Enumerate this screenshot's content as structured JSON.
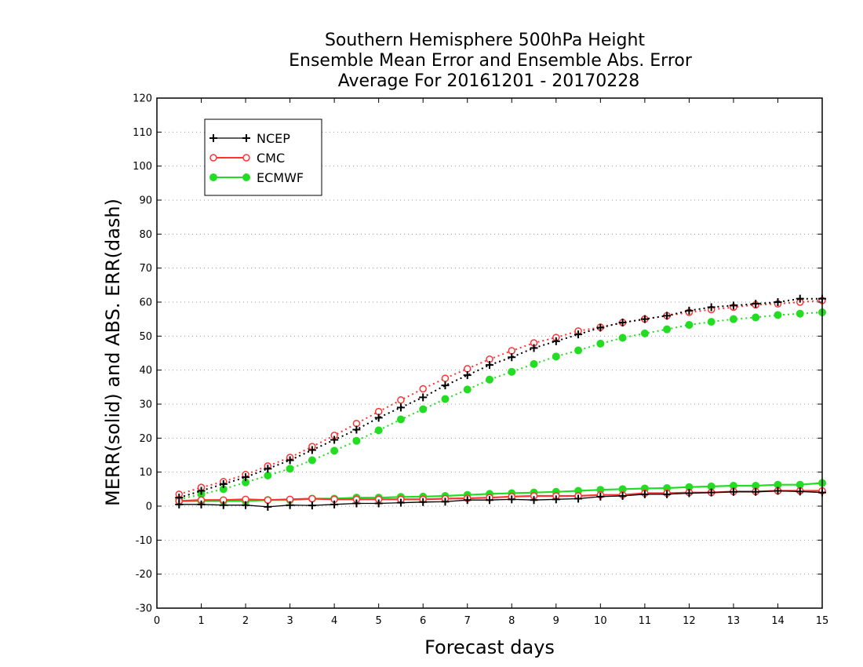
{
  "chart_data": {
    "type": "line",
    "title": [
      "Southern Hemisphere 500hPa Height",
      "Ensemble Mean Error and Ensemble Abs. Error",
      "Average For 20161201 - 20170228"
    ],
    "xlabel": "Forecast days",
    "ylabel": "MERR(solid) and ABS. ERR(dash)",
    "xlim": [
      0,
      15
    ],
    "ylim": [
      -30,
      120
    ],
    "xticks": [
      0,
      1,
      2,
      3,
      4,
      5,
      6,
      7,
      8,
      9,
      10,
      11,
      12,
      13,
      14,
      15
    ],
    "yticks": [
      -30,
      -20,
      -10,
      0,
      10,
      20,
      30,
      40,
      50,
      60,
      70,
      80,
      90,
      100,
      110,
      120
    ],
    "grid": "horizontal dotted",
    "legend_position": "top-left",
    "x": [
      0.5,
      1.0,
      1.5,
      2.0,
      2.5,
      3.0,
      3.5,
      4.0,
      4.5,
      5.0,
      5.5,
      6.0,
      6.5,
      7.0,
      7.5,
      8.0,
      8.5,
      9.0,
      9.5,
      10.0,
      10.5,
      11.0,
      11.5,
      12.0,
      12.5,
      13.0,
      13.5,
      14.0,
      14.5,
      15.0
    ],
    "series": [
      {
        "name": "NCEP",
        "color": "#000000",
        "marker": "plus",
        "merr": [
          0.5,
          0.5,
          0.3,
          0.3,
          -0.2,
          0.3,
          0.2,
          0.5,
          0.8,
          0.8,
          1.0,
          1.2,
          1.3,
          1.8,
          1.8,
          2.0,
          1.8,
          2.0,
          2.2,
          2.8,
          3.0,
          3.5,
          3.5,
          3.8,
          4.0,
          4.2,
          4.2,
          4.5,
          4.3,
          4.0
        ],
        "abs_err": [
          2.5,
          4.5,
          6.5,
          8.5,
          11.0,
          13.5,
          16.5,
          19.5,
          22.5,
          26.0,
          29.0,
          32.0,
          35.5,
          38.5,
          41.5,
          43.8,
          46.5,
          48.5,
          50.5,
          52.5,
          54.0,
          55.0,
          56.0,
          57.5,
          58.5,
          59.0,
          59.5,
          60.0,
          61.0,
          61.0
        ]
      },
      {
        "name": "CMC",
        "color": "#ff3333",
        "marker": "open-circle",
        "merr": [
          1.5,
          1.8,
          1.8,
          2.0,
          1.8,
          2.0,
          2.2,
          2.0,
          2.0,
          2.0,
          2.0,
          2.0,
          2.2,
          2.3,
          2.5,
          2.8,
          3.0,
          3.0,
          3.0,
          3.3,
          3.3,
          3.8,
          3.8,
          4.0,
          4.0,
          4.3,
          4.3,
          4.5,
          4.5,
          4.5
        ],
        "abs_err": [
          3.5,
          5.5,
          7.2,
          9.3,
          11.8,
          14.3,
          17.5,
          20.8,
          24.3,
          27.8,
          31.2,
          34.5,
          37.6,
          40.4,
          43.2,
          45.7,
          48.0,
          49.6,
          51.5,
          52.6,
          54.0,
          55.0,
          56.0,
          57.0,
          57.8,
          58.5,
          59.2,
          59.5,
          60.0,
          60.5
        ]
      },
      {
        "name": "ECMWF",
        "color": "#22dd22",
        "marker": "filled-circle",
        "merr": [
          1.5,
          1.5,
          1.5,
          1.5,
          1.8,
          1.8,
          2.2,
          2.2,
          2.5,
          2.5,
          2.7,
          2.8,
          3.0,
          3.3,
          3.6,
          3.8,
          4.0,
          4.2,
          4.5,
          4.8,
          5.0,
          5.2,
          5.3,
          5.6,
          5.8,
          6.0,
          6.0,
          6.3,
          6.3,
          6.8
        ],
        "abs_err": [
          2.0,
          3.5,
          5.0,
          7.0,
          9.0,
          11.0,
          13.5,
          16.3,
          19.2,
          22.3,
          25.5,
          28.5,
          31.5,
          34.3,
          37.2,
          39.5,
          41.8,
          44.0,
          45.8,
          47.8,
          49.5,
          50.8,
          52.0,
          53.3,
          54.2,
          55.0,
          55.5,
          56.2,
          56.6,
          57.0
        ]
      }
    ]
  }
}
